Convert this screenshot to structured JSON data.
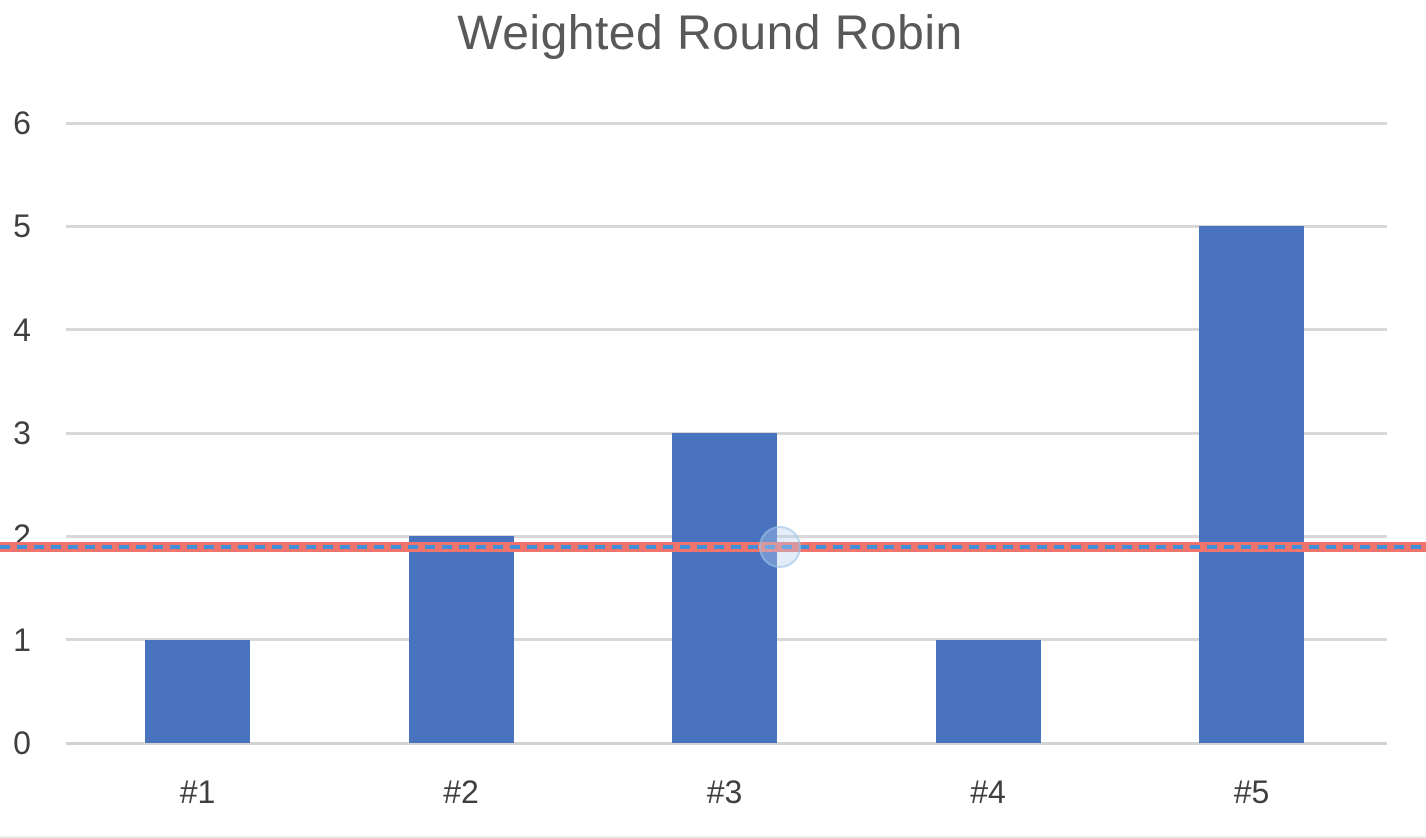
{
  "chart_data": {
    "type": "bar",
    "title": "Weighted Round Robin",
    "categories": [
      "#1",
      "#2",
      "#3",
      "#4",
      "#5"
    ],
    "values": [
      1,
      2,
      3,
      1,
      5
    ],
    "xlabel": "",
    "ylabel": "",
    "ylim": [
      0,
      6
    ],
    "yticks": [
      0,
      1,
      2,
      3,
      4,
      5,
      6
    ],
    "grid": true,
    "legend": "none",
    "bar_color": "#4a73bf",
    "gridline_color": "#d8d8d8",
    "title_color": "#595959",
    "tick_label_color": "#3f3f3f",
    "reference_line": {
      "value": 1.9,
      "band_color": "#f0746b",
      "dash_color": "#3f8fdb",
      "style": "solid salmon band spanning full image width with blue dashed line overlaid"
    },
    "cursor_halo": {
      "description": "faint translucent circular highlight on the reference line at the right edge of bar #3",
      "at_category": "#3",
      "at_value": 1.9
    }
  }
}
